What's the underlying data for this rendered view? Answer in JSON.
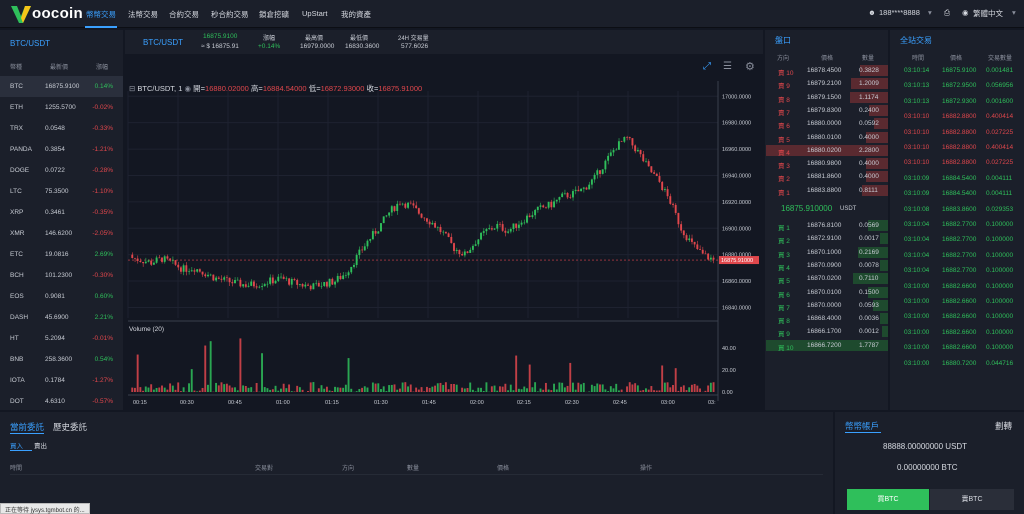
{
  "nav": {
    "logo": "oocoin",
    "items": [
      "幣幣交易",
      "法幣交易",
      "合約交易",
      "秒合約交易",
      "鎖倉挖礦",
      "UpStart",
      "我的資產"
    ],
    "phone": "188****8888",
    "lang": "繁體中文"
  },
  "pairs": {
    "title": "BTC/USDT",
    "headers": [
      "幣種",
      "最新價",
      "漲幅"
    ],
    "rows": [
      {
        "sym": "BTC",
        "price": "16875.9100",
        "chg": "0.14%",
        "up": true
      },
      {
        "sym": "ETH",
        "price": "1255.5700",
        "chg": "-0.02%",
        "up": false
      },
      {
        "sym": "TRX",
        "price": "0.0548",
        "chg": "-0.33%",
        "up": false
      },
      {
        "sym": "PANDA",
        "price": "0.3854",
        "chg": "-1.21%",
        "up": false
      },
      {
        "sym": "DOGE",
        "price": "0.0722",
        "chg": "-0.28%",
        "up": false
      },
      {
        "sym": "LTC",
        "price": "75.3500",
        "chg": "-1.10%",
        "up": false
      },
      {
        "sym": "XRP",
        "price": "0.3461",
        "chg": "-0.35%",
        "up": false
      },
      {
        "sym": "XMR",
        "price": "146.6200",
        "chg": "-2.05%",
        "up": false
      },
      {
        "sym": "ETC",
        "price": "19.0816",
        "chg": "2.69%",
        "up": true
      },
      {
        "sym": "BCH",
        "price": "101.2300",
        "chg": "-0.30%",
        "up": false
      },
      {
        "sym": "EOS",
        "price": "0.9081",
        "chg": "0.60%",
        "up": true
      },
      {
        "sym": "DASH",
        "price": "45.6900",
        "chg": "2.21%",
        "up": true
      },
      {
        "sym": "HT",
        "price": "5.2094",
        "chg": "-0.01%",
        "up": false
      },
      {
        "sym": "BNB",
        "price": "258.3600",
        "chg": "0.54%",
        "up": true
      },
      {
        "sym": "IOTA",
        "price": "0.1784",
        "chg": "-1.27%",
        "up": false
      },
      {
        "sym": "DOT",
        "price": "4.6310",
        "chg": "-0.57%",
        "up": false
      }
    ]
  },
  "ticker": {
    "pair": "BTC/USDT",
    "price": "16875.9100",
    "usd": "≈ $ 16875.91",
    "chg_label": "漲幅",
    "chg": "+0.14%",
    "high_label": "最高價",
    "high": "16979.0000",
    "low_label": "最低價",
    "low": "16830.3600",
    "vol_label": "24H 交易量",
    "vol": "577.6026"
  },
  "chart": {
    "legend": "BTC/USDT, 1",
    "open_label": "開=",
    "open": "16880.02000",
    "high_label": "高=",
    "high": "16884.54000",
    "low_label": "低=",
    "low": "16872.93000",
    "close_label": "收=",
    "close": "16875.91000",
    "last": "16875.91000",
    "vol_label": "Volume (20)"
  },
  "chart_data": {
    "type": "candlestick",
    "y_ticks": [
      "17000.0000",
      "16980.0000",
      "16960.0000",
      "16940.0000",
      "16920.0000",
      "16900.0000",
      "16880.0000",
      "16860.0000",
      "16840.0000"
    ],
    "x_ticks": [
      "00:15",
      "00:30",
      "00:45",
      "01:00",
      "01:15",
      "01:30",
      "01:45",
      "02:00",
      "02:15",
      "02:30",
      "02:45",
      "03:00",
      "03:"
    ],
    "vol_ticks": [
      "40.00",
      "20.00",
      "0.00"
    ],
    "closes": [
      16876,
      16874,
      16877,
      16873,
      16869,
      16870,
      16866,
      16862,
      16860,
      16858,
      16857,
      16858,
      16860,
      16862,
      16859,
      16857,
      16856,
      16858,
      16860,
      16866,
      16878,
      16890,
      16900,
      16912,
      16920,
      16917,
      16910,
      16904,
      16896,
      16885,
      16880,
      16890,
      16898,
      16902,
      16898,
      16904,
      16910,
      16915,
      16918,
      16924,
      16926,
      16930,
      16938,
      16950,
      16962,
      16968,
      16958,
      16945,
      16935,
      16920,
      16900,
      16888,
      16880,
      16876
    ]
  },
  "orderbook": {
    "title": "盤口",
    "headers": [
      "方向",
      "價格",
      "數量"
    ],
    "asks": [
      {
        "side": "賣 10",
        "price": "16878.4500",
        "qty": "0.3828"
      },
      {
        "side": "賣 9",
        "price": "16879.2100",
        "qty": "1.2009"
      },
      {
        "side": "賣 8",
        "price": "16879.1500",
        "qty": "1.1174"
      },
      {
        "side": "賣 7",
        "price": "16879.8300",
        "qty": "0.2400"
      },
      {
        "side": "賣 6",
        "price": "16880.0000",
        "qty": "0.0592"
      },
      {
        "side": "賣 5",
        "price": "16880.0100",
        "qty": "0.4000"
      },
      {
        "side": "賣 4",
        "price": "16880.0200",
        "qty": "2.2800"
      },
      {
        "side": "賣 3",
        "price": "16880.9800",
        "qty": "0.4000"
      },
      {
        "side": "賣 2",
        "price": "16881.8600",
        "qty": "0.4000"
      },
      {
        "side": "賣 1",
        "price": "16883.8800",
        "qty": "0.8111"
      }
    ],
    "mid": "16875.910000",
    "mid_unit": "USDT",
    "bids": [
      {
        "side": "買 1",
        "price": "16876.8100",
        "qty": "0.0569"
      },
      {
        "side": "買 2",
        "price": "16872.9100",
        "qty": "0.0017"
      },
      {
        "side": "買 3",
        "price": "16870.1000",
        "qty": "0.2169"
      },
      {
        "side": "買 4",
        "price": "16870.0900",
        "qty": "0.0078"
      },
      {
        "side": "買 5",
        "price": "16870.0200",
        "qty": "0.7110"
      },
      {
        "side": "買 6",
        "price": "16870.0100",
        "qty": "0.1500"
      },
      {
        "side": "買 7",
        "price": "16870.0000",
        "qty": "0.0593"
      },
      {
        "side": "買 8",
        "price": "16868.4000",
        "qty": "0.0036"
      },
      {
        "side": "買 9",
        "price": "16866.1700",
        "qty": "0.0012"
      },
      {
        "side": "買 10",
        "price": "16866.7200",
        "qty": "1.7787"
      }
    ]
  },
  "trades": {
    "title": "全站交易",
    "headers": [
      "時間",
      "價格",
      "交易數量"
    ],
    "rows": [
      {
        "t": "03:10:14",
        "p": "16875.9100",
        "q": "0.001481",
        "up": true
      },
      {
        "t": "03:10:13",
        "p": "16872.9500",
        "q": "0.056956",
        "up": true
      },
      {
        "t": "03:10:13",
        "p": "16872.9300",
        "q": "0.001600",
        "up": true
      },
      {
        "t": "03:10:10",
        "p": "16882.8800",
        "q": "0.400414",
        "up": false
      },
      {
        "t": "03:10:10",
        "p": "16882.8800",
        "q": "0.027225",
        "up": false
      },
      {
        "t": "03:10:10",
        "p": "16882.8800",
        "q": "0.400414",
        "up": false
      },
      {
        "t": "03:10:10",
        "p": "16882.8800",
        "q": "0.027225",
        "up": false
      },
      {
        "t": "03:10:09",
        "p": "16884.5400",
        "q": "0.004111",
        "up": true
      },
      {
        "t": "03:10:09",
        "p": "16884.5400",
        "q": "0.004111",
        "up": true
      },
      {
        "t": "03:10:08",
        "p": "16883.8600",
        "q": "0.029353",
        "up": true
      },
      {
        "t": "03:10:04",
        "p": "16882.7700",
        "q": "0.100000",
        "up": true
      },
      {
        "t": "03:10:04",
        "p": "16882.7700",
        "q": "0.100000",
        "up": true
      },
      {
        "t": "03:10:04",
        "p": "16882.7700",
        "q": "0.100000",
        "up": true
      },
      {
        "t": "03:10:04",
        "p": "16882.7700",
        "q": "0.100000",
        "up": true
      },
      {
        "t": "03:10:00",
        "p": "16882.6600",
        "q": "0.100000",
        "up": true
      },
      {
        "t": "03:10:00",
        "p": "16882.6600",
        "q": "0.100000",
        "up": true
      },
      {
        "t": "03:10:00",
        "p": "16882.6600",
        "q": "0.100000",
        "up": true
      },
      {
        "t": "03:10:00",
        "p": "16882.6600",
        "q": "0.100000",
        "up": true
      },
      {
        "t": "03:10:00",
        "p": "16882.6600",
        "q": "0.100000",
        "up": true
      },
      {
        "t": "03:10:00",
        "p": "16880.7200",
        "q": "0.044716",
        "up": true
      }
    ]
  },
  "orders": {
    "tab_current": "當前委託",
    "tab_history": "歷史委託",
    "sub_buy": "買入",
    "sub_sell": "賣出",
    "cols": [
      "時間",
      "交易對",
      "方向",
      "數量",
      "價格",
      "操作"
    ]
  },
  "account": {
    "title": "幣幣帳戶",
    "transfer": "劃轉",
    "usdt": "88888.00000000 USDT",
    "btc": "0.00000000 BTC",
    "buy": "買BTC",
    "sell": "賣BTC"
  },
  "status": "正在等待 jysys.tgmbot.cn 的..."
}
